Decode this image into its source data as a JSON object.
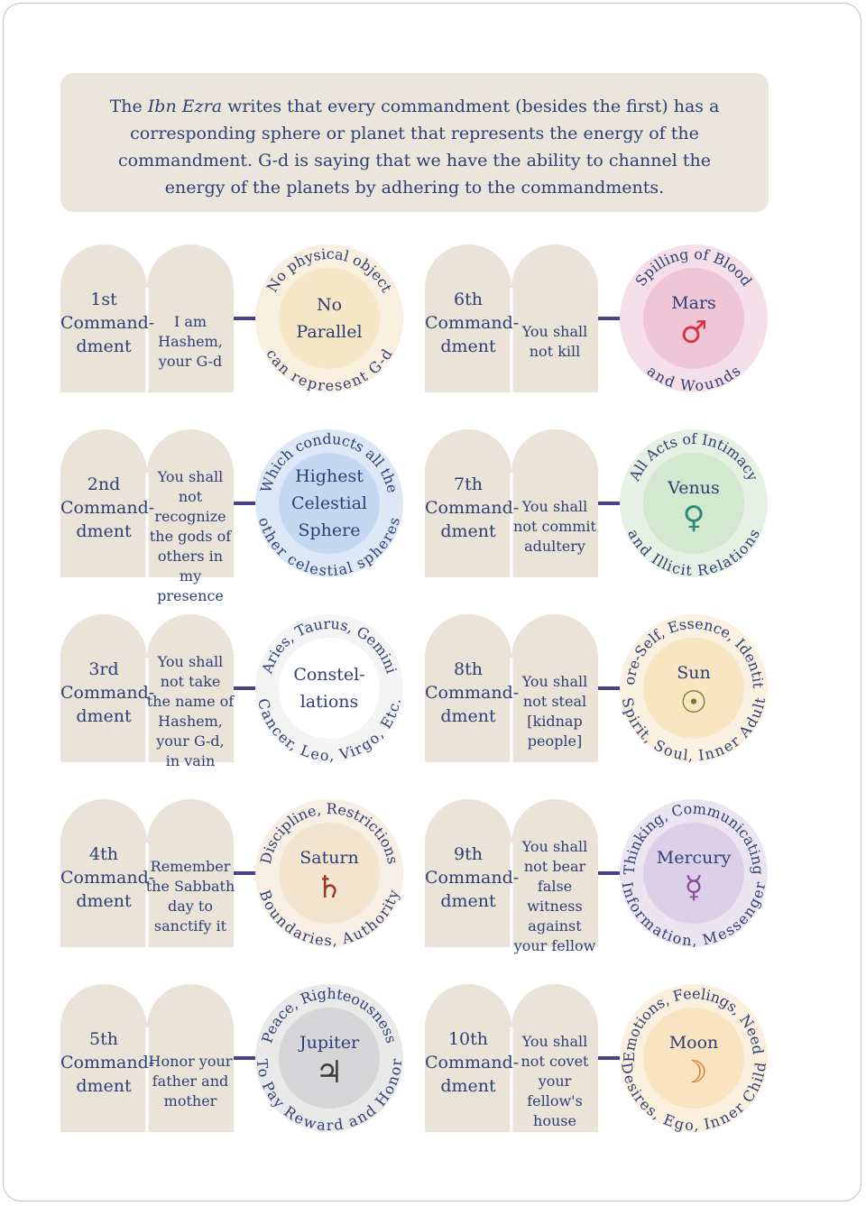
{
  "intro": {
    "before": "The ",
    "italic": "Ibn Ezra",
    "after": " writes that every commandment (besides the first) has a corresponding sphere or planet that represents the energy of the commandment. G-d is saying that we have the ability to channel the energy of the planets by adhering to the commandments."
  },
  "commandments": [
    {
      "number": "1st Command- dment",
      "text": "I am Hashem, your G-d",
      "planet": "No Parallel",
      "symbol": "",
      "top_arc": "No physical object",
      "bottom_arc": "can represent G-d",
      "color": "#f8efde",
      "inner": "#f6e7c7"
    },
    {
      "number": "2nd Command- dment",
      "text": "You shall not recognize the gods of others in my presence",
      "planet": "Highest Celestial Sphere",
      "symbol": "",
      "top_arc": "Which conducts all the",
      "bottom_arc": "other celestial spheres",
      "color": "#dde8f6",
      "inner": "#c5d8f1"
    },
    {
      "number": "3rd Command- dment",
      "text": "You shall not take the name of Hashem, your G-d, in vain",
      "planet": "Constel- lations",
      "symbol": "",
      "top_arc": "Aries, Taurus, Gemini",
      "bottom_arc": "Cancer, Leo, Virgo, Etc.",
      "color": "#f4f4f4",
      "inner": "#ffffff"
    },
    {
      "number": "4th Command- dment",
      "text": "Remember the Sabbath day to sanctify it",
      "planet": "Saturn",
      "symbol": "♄",
      "top_arc": "Discipline, Restrictions",
      "bottom_arc": "Boundaries, Authority",
      "color": "#f7efe3",
      "inner": "#f3e4cf",
      "sym_color": "#9b3b26"
    },
    {
      "number": "5th Command- dment",
      "text": "Honor your father and mother",
      "planet": "Jupiter",
      "symbol": "♃",
      "top_arc": "Peace, Righteousness",
      "bottom_arc": "To Pay Reward and Honor",
      "color": "#e9e9ea",
      "inner": "#d6d6d8",
      "sym_color": "#3a3a3a"
    },
    {
      "number": "6th Command- dment",
      "text": "You shall not kill",
      "planet": "Mars",
      "symbol": "♂",
      "top_arc": "Spilling of Blood",
      "bottom_arc": "and Wounds",
      "color": "#f5dfe8",
      "inner": "#efc6d6",
      "sym_color": "#d6333f"
    },
    {
      "number": "7th Command- dment",
      "text": "You shall not commit adultery",
      "planet": "Venus",
      "symbol": "♀",
      "top_arc": "All Acts of Intimacy",
      "bottom_arc": "and Illicit Relations",
      "color": "#e5f1e3",
      "inner": "#d2e8cf",
      "sym_color": "#2c8a78"
    },
    {
      "number": "8th Command- dment",
      "text": "You shall not steal [kidnap people]",
      "planet": "Sun",
      "symbol": "☉",
      "top_arc": "Core-Self, Essence, Identity",
      "bottom_arc": "Spirit, Soul, Inner Adult",
      "color": "#fbf1e0",
      "inner": "#f8e6c2",
      "sym_color": "#6f7a22"
    },
    {
      "number": "9th Command- dment",
      "text": "You shall not bear false witness against your fellow",
      "planet": "Mercury",
      "symbol": "☿",
      "top_arc": "Thinking, Communicating",
      "bottom_arc": "Information, Messenger",
      "color": "#ebe4f1",
      "inner": "#dcd0e9",
      "sym_color": "#8b4e9b"
    },
    {
      "number": "10th Command- dment",
      "text": "You shall not covet your fellow's house",
      "planet": "Moon",
      "symbol": "☽",
      "top_arc": "Emotions, Feelings, Needs",
      "bottom_arc": "Desires, Ego, Inner Child",
      "color": "#fbf0de",
      "inner": "#f8e4c1",
      "sym_color": "#e0691f"
    }
  ]
}
